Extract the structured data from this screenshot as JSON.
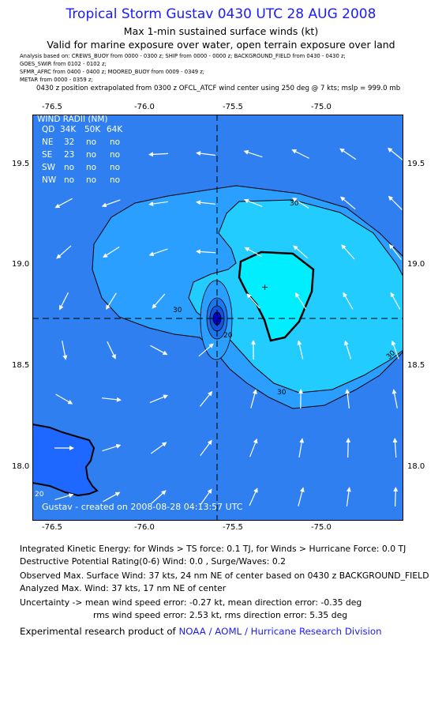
{
  "header": {
    "title": "Tropical Storm Gustav 0430 UTC 28 AUG 2008",
    "subtitle": "Max 1-min sustained surface winds (kt)",
    "valid": "Valid for marine exposure over water, open terrain exposure over land"
  },
  "sources": [
    "Analysis based on:  CREWS_BUOY from 0000 - 0300 z;  SHIP from 0000 - 0000 z;  BACKGROUND_FIELD from 0430 - 0430 z;",
    "GOES_SWIR from 0102 - 0102 z;",
    "SFMR_AFRC from 0400 - 0400 z;   MOORED_BUOY from 0009 - 0349 z;",
    "METAR from 0000 - 0359 z;"
  ],
  "position_note": "0430 z position extrapolated from 0300 z OFCL_ATCF wind center using 250 deg @ 7 kts; mslp = 999.0 mb",
  "map": {
    "lon_ticks": [
      "-76.5",
      "-76.0",
      "-75.5",
      "-75.0"
    ],
    "lat_ticks": [
      "19.5",
      "19.0",
      "18.5",
      "18.0"
    ],
    "lon_range": [
      -76.64,
      -74.65
    ],
    "lat_range": [
      17.74,
      19.75
    ],
    "storm_center": {
      "lon": -75.59,
      "lat": 18.74
    },
    "max_wind_marker": {
      "lon": -75.36,
      "lat": 18.89
    },
    "contour_labels": [
      "30",
      "30",
      "30",
      "30",
      "20",
      "20"
    ],
    "colors": {
      "land": "#1f68ff",
      "below_20kt": "#2f7ff0",
      "band_20_30kt": "#2a9fff",
      "band_30_34kt": "#22ccff",
      "ts_34kt": "#00eeff",
      "core": "#0000cc"
    },
    "wind_radii": {
      "title": "WIND RADII (NM)",
      "columns": [
        "QD",
        "34K",
        "50K",
        "64K"
      ],
      "rows": [
        [
          "NE",
          "32",
          "no",
          "no"
        ],
        [
          "SE",
          "23",
          "no",
          "no"
        ],
        [
          "SW",
          "no",
          "no",
          "no"
        ],
        [
          "NW",
          "no",
          "no",
          "no"
        ]
      ]
    },
    "footer": "Gustav - created on 2008-08-28 04:13:57 UTC",
    "wind_vectors": {
      "note": "white arrows show wind direction",
      "grid_rows": 8,
      "grid_cols": 8
    }
  },
  "info": {
    "ike": "Integrated Kinetic Energy:  for Winds > TS force: 0.1 TJ,  for Winds > Hurricane Force: 0.0 TJ",
    "dpr": "Destructive Potential Rating(0-6)   Wind: 0.0 , Surge/Waves: 0.2",
    "observed": "Observed Max. Surface Wind: 37 kts, 24 nm NE of center based on 0430 z BACKGROUND_FIELD",
    "analyzed": "Analyzed Max. Wind: 37 kts, 17 nm NE of center",
    "uncertainty1": "Uncertainty -> mean wind speed error:  -0.27 kt,   mean direction error:  -0.35 deg",
    "uncertainty2": "rms wind speed error: 2.53 kt,   rms direction error: 5.35 deg",
    "product_prefix": "Experimental research product of ",
    "product_org": "NOAA / AOML / Hurricane Research Division"
  }
}
